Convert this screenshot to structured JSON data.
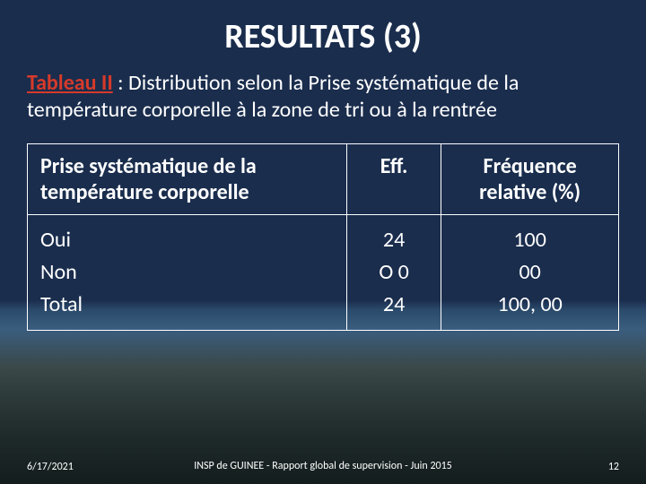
{
  "title": {
    "text": "RESULTATS (3)",
    "fontsize": 38,
    "color": "#ffffff",
    "weight": 700
  },
  "subtitle": {
    "label": "Tableau II",
    "label_color": "#d63a2a",
    "sep": " : ",
    "rest": "Distribution selon la Prise systématique de la température corporelle à la  zone de tri ou à la rentrée",
    "fontsize": 24,
    "color": "#ffffff"
  },
  "table": {
    "header_fontsize": 24,
    "cell_fontsize": 24,
    "border_color": "#ffffff",
    "columns": [
      {
        "label": "Prise systématique de la température corporelle",
        "align": "left"
      },
      {
        "label": "Eff.",
        "align": "center"
      },
      {
        "label": "Fréquence relative (%)",
        "align": "center"
      }
    ],
    "row_labels": [
      "Oui",
      "Non",
      "Total"
    ],
    "eff_values": [
      "24",
      "O 0",
      "24"
    ],
    "freq_values": [
      "100",
      "00",
      "100, 00"
    ]
  },
  "footer": {
    "date": "6/17/2021",
    "center": "INSP de GUINEE - Rapport global de supervision - Juin 2015",
    "page": "12",
    "fontsize": 12,
    "color": "#ffffff"
  },
  "background": {
    "top_color": "#1a2d4d",
    "horizon_color": "#3a5d7e",
    "bottom_color": "#141d1d"
  }
}
